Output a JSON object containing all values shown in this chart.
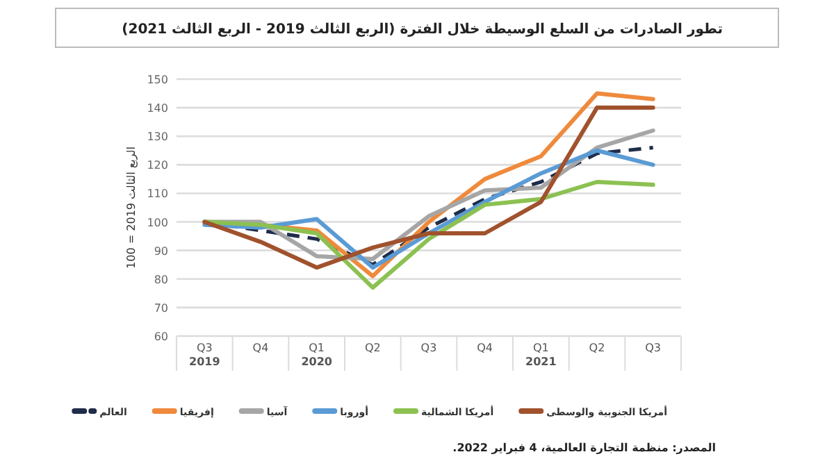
{
  "chart_data": {
    "type": "line",
    "title": "تطور الصادرات من السلع الوسيطة خلال الفترة (الربع الثالث 2019 - الربع الثالث 2021)",
    "ylabel": "الربع الثالث 2019 = 100",
    "categories": [
      "Q3\n2019",
      "Q4",
      "Q1\n2020",
      "Q2",
      "Q3",
      "Q4",
      "Q1\n2021",
      "Q2",
      "Q3"
    ],
    "series": [
      {
        "name": "العالم",
        "color": "#1f2d4a",
        "line_style": "dashed",
        "values": [
          100,
          97,
          94,
          85,
          98,
          108,
          114,
          124,
          126
        ]
      },
      {
        "name": "إفريقيا",
        "color": "#ef8a3c",
        "values": [
          100,
          99,
          97,
          81,
          100,
          115,
          123,
          145,
          143
        ]
      },
      {
        "name": "آسيا",
        "color": "#a6a6a6",
        "values": [
          100,
          100,
          88,
          87,
          102,
          111,
          112,
          126,
          132
        ]
      },
      {
        "name": "أوروبا",
        "color": "#5b9bd5",
        "values": [
          99,
          98,
          101,
          84,
          96,
          107,
          117,
          125,
          120
        ]
      },
      {
        "name": "أمريكا الشمالية",
        "color": "#8cc152",
        "values": [
          100,
          99,
          96,
          77,
          94,
          106,
          108,
          114,
          113
        ]
      },
      {
        "name": "أمريكا الجنوبية والوسطى",
        "color": "#a0522d",
        "values": [
          100,
          93,
          84,
          91,
          96,
          96,
          107,
          140,
          140
        ]
      }
    ],
    "ylim": [
      60,
      150
    ],
    "yticks": [
      60,
      70,
      80,
      90,
      100,
      110,
      120,
      130,
      140,
      150
    ],
    "grid": "y",
    "legend": "bottom",
    "marker": "none",
    "line_style": "solid",
    "annotations": [
      "المصدر: منظمة التجارة العالمية، 4 فبراير 2022."
    ]
  }
}
